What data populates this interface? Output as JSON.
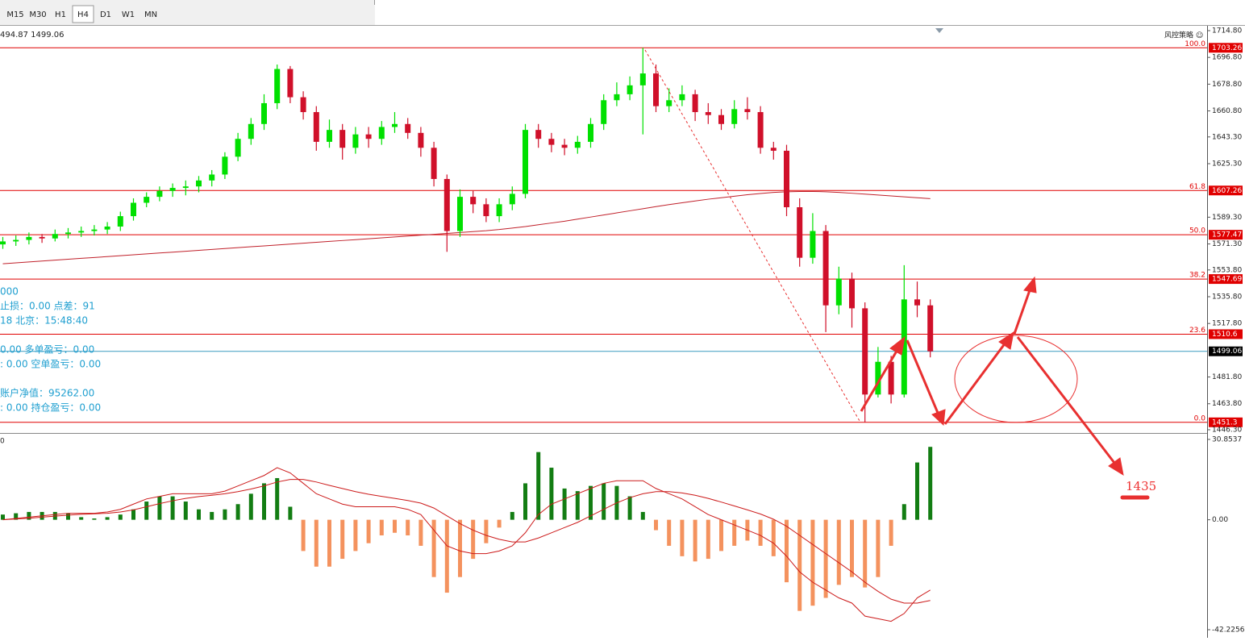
{
  "toolbar": {
    "timeframes": [
      "M15",
      "M30",
      "H1",
      "H4",
      "D1",
      "W1",
      "MN"
    ],
    "selected": 3
  },
  "header": {
    "quote": "494.87 1499.06",
    "ea": "风控策略 ☺"
  },
  "info_panel": [
    "000",
    "止损：0.00   点差：91",
    "18   北京：15:48:40",
    "0.00   多单盈亏：0.00",
    ": 0.00   空单盈亏：0.00",
    "账户净值：95262.00",
    ": 0.00   持仓盈亏：0.00"
  ],
  "macd_left_label": "0",
  "annotation": {
    "text": "1435",
    "color": "#ee3333"
  },
  "chart_data": [
    {
      "type": "candlestick",
      "up_color": "#00e000",
      "down_color": "#d0102a",
      "ylim": [
        1446.3,
        1714.8
      ],
      "yticks": [
        {
          "value": 1714.8,
          "label": "1714.80"
        },
        {
          "value": 1696.8,
          "label": "1696.80"
        },
        {
          "value": 1678.8,
          "label": "1678.80"
        },
        {
          "value": 1660.8,
          "label": "1660.80"
        },
        {
          "value": 1643.3,
          "label": "1643.30"
        },
        {
          "value": 1625.3,
          "label": "1625.30"
        },
        {
          "value": 1589.3,
          "label": "1589.30"
        },
        {
          "value": 1571.3,
          "label": "1571.30"
        },
        {
          "value": 1553.8,
          "label": "1553.80"
        },
        {
          "value": 1535.8,
          "label": "1535.80"
        },
        {
          "value": 1517.8,
          "label": "1517.80"
        },
        {
          "value": 1481.8,
          "label": "1481.80"
        },
        {
          "value": 1463.8,
          "label": "1463.80"
        },
        {
          "value": 1446.3,
          "label": "1446.30"
        }
      ],
      "open": [
        1571,
        1573,
        1574,
        1576,
        1575,
        1578,
        1579,
        1580,
        1581,
        1583,
        1590,
        1599,
        1603,
        1607,
        1609,
        1610,
        1614,
        1618,
        1630,
        1642,
        1652,
        1666,
        1689,
        1670,
        1660,
        1640,
        1648,
        1636,
        1645,
        1642,
        1650,
        1652,
        1646,
        1636,
        1615,
        1580,
        1603,
        1598,
        1590,
        1598,
        1605,
        1648,
        1642,
        1638,
        1636,
        1640,
        1652,
        1668,
        1672,
        1678,
        1686,
        1664,
        1668,
        1672,
        1660,
        1658,
        1652,
        1662,
        1660,
        1636,
        1634,
        1596,
        1562,
        1580,
        1530,
        1548,
        1528,
        1470,
        1492,
        1470,
        1534,
        1530
      ],
      "high": [
        1576,
        1577,
        1579,
        1578,
        1581,
        1582,
        1583,
        1584,
        1586,
        1593,
        1602,
        1606,
        1610,
        1612,
        1614,
        1617,
        1621,
        1633,
        1646,
        1656,
        1672,
        1692,
        1691,
        1674,
        1664,
        1655,
        1652,
        1650,
        1650,
        1654,
        1660,
        1656,
        1650,
        1640,
        1618,
        1608,
        1607,
        1602,
        1602,
        1610,
        1652,
        1652,
        1646,
        1642,
        1644,
        1656,
        1672,
        1680,
        1684,
        1703.26,
        1692,
        1676,
        1678,
        1675,
        1666,
        1662,
        1668,
        1670,
        1664,
        1640,
        1638,
        1602,
        1592,
        1584,
        1556,
        1552,
        1532,
        1502,
        1496,
        1557,
        1546,
        1534
      ],
      "low": [
        1568,
        1570,
        1571,
        1572,
        1573,
        1575,
        1576,
        1577,
        1578,
        1580,
        1587,
        1596,
        1600,
        1603,
        1604,
        1606,
        1610,
        1615,
        1627,
        1638,
        1648,
        1662,
        1666,
        1655,
        1634,
        1636,
        1628,
        1632,
        1636,
        1638,
        1646,
        1642,
        1630,
        1610,
        1566,
        1576,
        1592,
        1586,
        1586,
        1594,
        1602,
        1636,
        1633,
        1631,
        1632,
        1636,
        1648,
        1664,
        1668,
        1645,
        1660,
        1660,
        1664,
        1654,
        1652,
        1648,
        1649,
        1655,
        1632,
        1628,
        1590,
        1556,
        1558,
        1512,
        1524,
        1515,
        1451.3,
        1468,
        1464,
        1468,
        1522,
        1495
      ],
      "close": [
        1573,
        1574,
        1576,
        1575,
        1578,
        1579,
        1580,
        1581,
        1583,
        1590,
        1599,
        1603,
        1607,
        1609,
        1610,
        1614,
        1618,
        1630,
        1642,
        1652,
        1666,
        1689,
        1670,
        1660,
        1640,
        1648,
        1636,
        1645,
        1642,
        1650,
        1652,
        1646,
        1636,
        1615,
        1580,
        1603,
        1598,
        1590,
        1598,
        1605,
        1648,
        1642,
        1638,
        1636,
        1640,
        1652,
        1668,
        1672,
        1678,
        1686,
        1664,
        1668,
        1672,
        1660,
        1658,
        1652,
        1662,
        1660,
        1636,
        1634,
        1596,
        1562,
        1580,
        1530,
        1548,
        1528,
        1470,
        1492,
        1470,
        1534,
        1530,
        1499.06
      ],
      "moving_average": {
        "color": "#c0202a",
        "values": [
          1558,
          1558.6,
          1559.2,
          1559.8,
          1560.4,
          1561,
          1561.6,
          1562.2,
          1562.8,
          1563.4,
          1564,
          1564.6,
          1565.2,
          1565.8,
          1566.4,
          1567,
          1567.6,
          1568.2,
          1568.8,
          1569.4,
          1570,
          1570.6,
          1571.2,
          1571.8,
          1572.4,
          1573,
          1573.6,
          1574.2,
          1574.8,
          1575.4,
          1576,
          1576.6,
          1577.2,
          1577.8,
          1578.4,
          1579,
          1579.6,
          1580.2,
          1581,
          1582,
          1583,
          1584.2,
          1585.4,
          1586.6,
          1588,
          1589.4,
          1590.8,
          1592.2,
          1593.6,
          1595,
          1596.4,
          1597.8,
          1599,
          1600.2,
          1601.4,
          1602.4,
          1603.4,
          1604.4,
          1605.2,
          1606,
          1606.4,
          1606.6,
          1606.6,
          1606.4,
          1606,
          1605.4,
          1604.8,
          1604.2,
          1603.6,
          1603,
          1602.4,
          1601.8
        ]
      },
      "levels": [
        {
          "price": 1703.26,
          "ratio": "100.0"
        },
        {
          "price": 1607.26,
          "ratio": "61.8"
        },
        {
          "price": 1577.47,
          "ratio": "50.0"
        },
        {
          "price": 1547.69,
          "ratio": "38.2"
        },
        {
          "price": 1510.6,
          "ratio": "23.6"
        },
        {
          "price": 1451.3,
          "ratio": "0.0"
        }
      ],
      "level_color": "#e00000",
      "current": {
        "price": 1499.06,
        "color": "#3a9ac0"
      }
    },
    {
      "type": "macd",
      "ylim": [
        -42.2256,
        30.8537
      ],
      "yticks": [
        30.8537,
        {
          "value": 0,
          "label": "0.00"
        },
        -42.2256
      ],
      "positive_color": "#137d13",
      "negative_color": "#f4925e",
      "histogram": [
        2,
        2.5,
        3,
        3,
        3,
        2.5,
        1,
        0.5,
        1,
        2,
        4,
        7,
        9,
        9,
        7,
        4,
        3,
        4,
        6,
        10,
        14,
        16,
        5,
        -12,
        -18,
        -18,
        -15,
        -12,
        -9,
        -6,
        -5,
        -6,
        -10,
        -22,
        -28,
        -22,
        -15,
        -9,
        -3,
        3,
        14,
        26,
        20,
        12,
        11,
        13,
        14,
        13,
        9,
        3,
        -4,
        -10,
        -14,
        -16,
        -15,
        -12,
        -10,
        -8,
        -10,
        -14,
        -24,
        -35,
        -33,
        -30,
        -25,
        -22,
        -26,
        -22,
        -10,
        6,
        22,
        28
      ],
      "series": [
        {
          "color": "#cc1a1a",
          "values": [
            0,
            0.5,
            1,
            1.5,
            2,
            2.5,
            2.5,
            2.5,
            3,
            4,
            6,
            8,
            9,
            10,
            10,
            10,
            10,
            11,
            13,
            15,
            17,
            20,
            18,
            14,
            10,
            8,
            6,
            5,
            5,
            5,
            5,
            4,
            2,
            -4,
            -10,
            -12,
            -13,
            -13,
            -12,
            -10,
            -5,
            2,
            6,
            8,
            10,
            12,
            14,
            15,
            15,
            15,
            12,
            10,
            8,
            5,
            2,
            0,
            -2,
            -4,
            -6,
            -9,
            -14,
            -20,
            -24,
            -27,
            -30,
            -32,
            -37,
            -38,
            -39,
            -36,
            -30,
            -27
          ]
        },
        {
          "color": "#cc1a1a",
          "values": [
            0,
            0.3,
            0.6,
            1,
            1.4,
            1.8,
            2.1,
            2.3,
            2.5,
            3,
            3.8,
            5,
            6.2,
            7.3,
            8.2,
            8.9,
            9.4,
            10,
            10.8,
            11.8,
            13,
            14.5,
            15.5,
            15.5,
            14.5,
            13.2,
            12,
            10.8,
            9.8,
            9,
            8.2,
            7.4,
            6.4,
            4.5,
            1.5,
            -1.5,
            -4,
            -6,
            -7.5,
            -8.5,
            -8.5,
            -7,
            -5,
            -3,
            -1,
            1.5,
            4,
            6.5,
            8.5,
            10,
            10.8,
            10.8,
            10.3,
            9.4,
            8.2,
            6.8,
            5.3,
            3.8,
            2.2,
            0.2,
            -2.5,
            -6,
            -9.5,
            -13,
            -16.5,
            -20,
            -24,
            -27.5,
            -30.5,
            -32,
            -32,
            -31
          ]
        }
      ]
    }
  ]
}
